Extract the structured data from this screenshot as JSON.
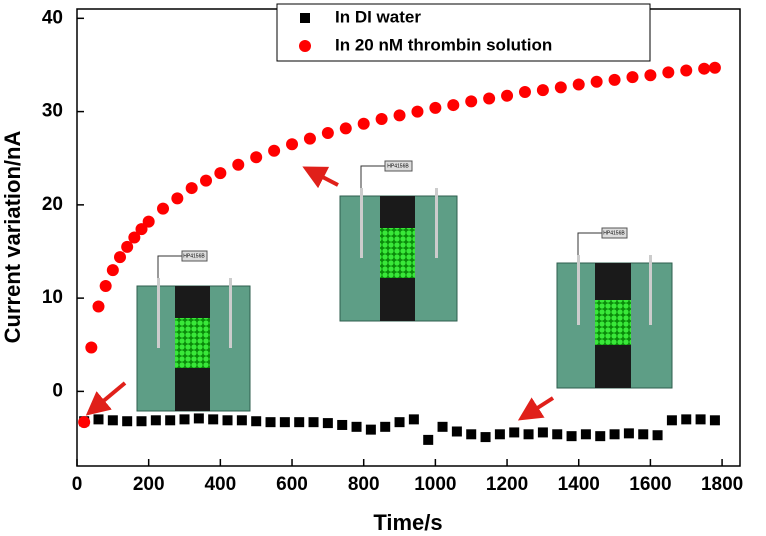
{
  "chart_data": {
    "type": "scatter",
    "xlabel": "Time/s",
    "ylabel": "Current variation/nA",
    "xlim": [
      0,
      1850
    ],
    "ylim": [
      -8,
      41
    ],
    "xticks": [
      0,
      200,
      400,
      600,
      800,
      1000,
      1200,
      1400,
      1600,
      1800
    ],
    "yticks": [
      0,
      10,
      20,
      30,
      40
    ],
    "instrument_label": "HP4156B",
    "series": [
      {
        "name": "In DI water",
        "color": "#000000",
        "marker": "square",
        "x": [
          20,
          60,
          100,
          140,
          180,
          220,
          260,
          300,
          340,
          380,
          420,
          460,
          500,
          540,
          580,
          620,
          660,
          700,
          740,
          780,
          820,
          860,
          900,
          940,
          980,
          1020,
          1060,
          1100,
          1140,
          1180,
          1220,
          1260,
          1300,
          1340,
          1380,
          1420,
          1460,
          1500,
          1540,
          1580,
          1620,
          1660,
          1700,
          1740,
          1780
        ],
        "values": [
          -3.2,
          -3.0,
          -3.1,
          -3.2,
          -3.2,
          -3.1,
          -3.1,
          -3.0,
          -2.9,
          -3.0,
          -3.1,
          -3.1,
          -3.2,
          -3.3,
          -3.3,
          -3.3,
          -3.3,
          -3.4,
          -3.6,
          -3.8,
          -4.1,
          -3.8,
          -3.3,
          -3.0,
          -5.2,
          -3.8,
          -4.3,
          -4.6,
          -4.9,
          -4.6,
          -4.4,
          -4.6,
          -4.4,
          -4.6,
          -4.8,
          -4.6,
          -4.8,
          -4.6,
          -4.5,
          -4.6,
          -4.7,
          -3.1,
          -3.0,
          -3.0,
          -3.1
        ]
      },
      {
        "name": "In 20 nM thrombin solution",
        "color": "#ff0000",
        "marker": "circle",
        "x": [
          20,
          40,
          60,
          80,
          100,
          120,
          140,
          160,
          180,
          200,
          240,
          280,
          320,
          360,
          400,
          450,
          500,
          550,
          600,
          650,
          700,
          750,
          800,
          850,
          900,
          950,
          1000,
          1050,
          1100,
          1150,
          1200,
          1250,
          1300,
          1350,
          1400,
          1450,
          1500,
          1550,
          1600,
          1650,
          1700,
          1750,
          1780
        ],
        "values": [
          -3.3,
          4.7,
          9.1,
          11.3,
          13.0,
          14.4,
          15.5,
          16.5,
          17.4,
          18.2,
          19.6,
          20.7,
          21.8,
          22.6,
          23.4,
          24.3,
          25.1,
          25.8,
          26.5,
          27.1,
          27.7,
          28.2,
          28.7,
          29.2,
          29.6,
          30.0,
          30.4,
          30.7,
          31.1,
          31.4,
          31.7,
          32.1,
          32.3,
          32.6,
          32.9,
          33.2,
          33.4,
          33.7,
          33.9,
          34.2,
          34.4,
          34.6,
          34.7
        ]
      }
    ]
  }
}
